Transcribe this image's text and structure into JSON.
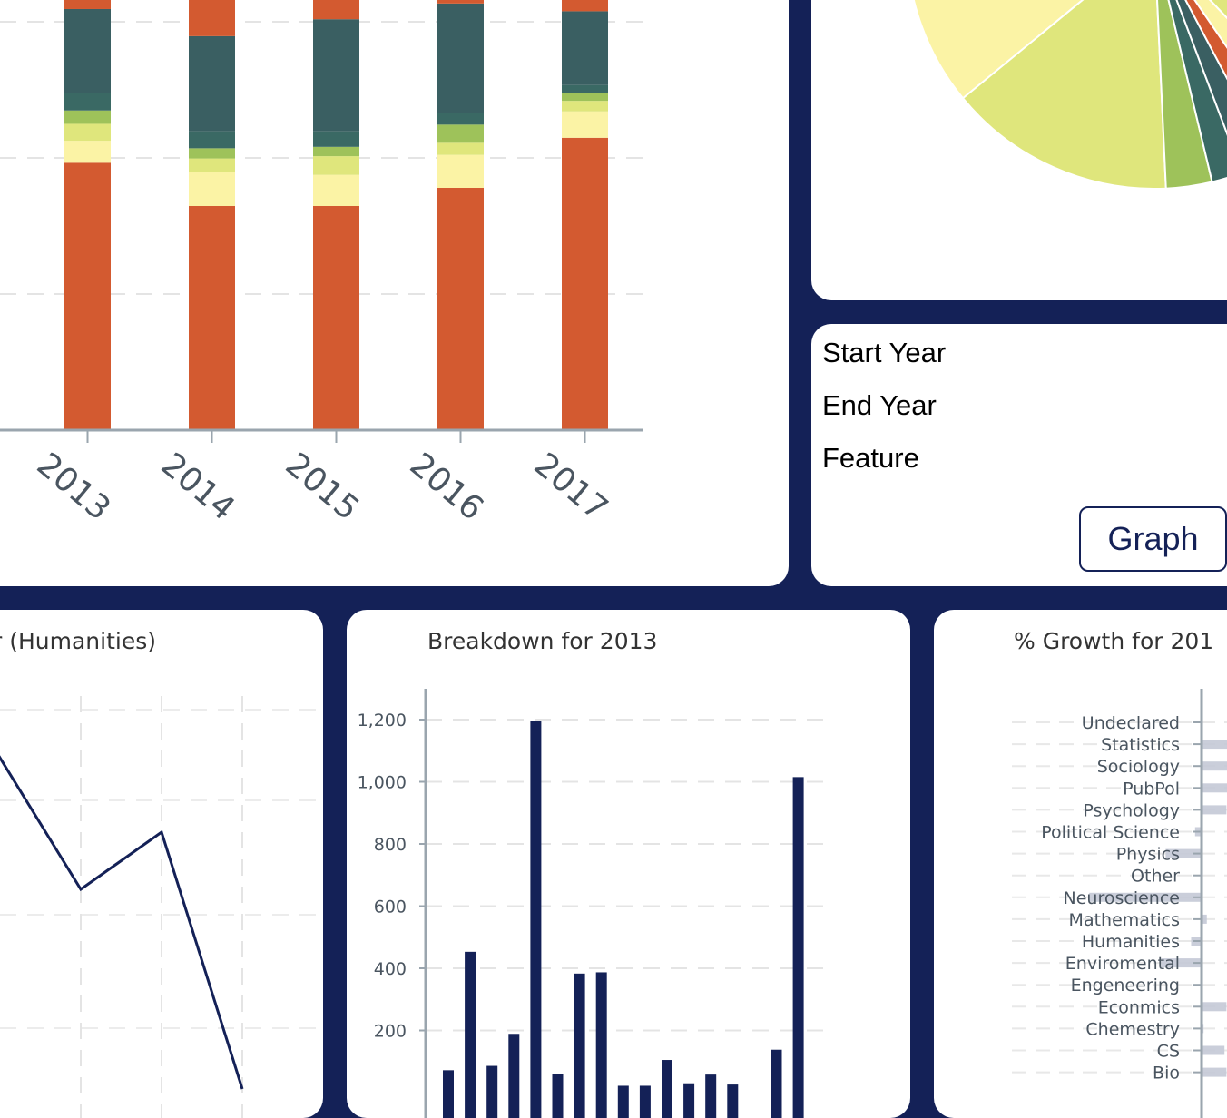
{
  "stacked_chart": {
    "chart_data": {
      "type": "bar",
      "stacked": true,
      "categories": [
        "2013",
        "2014",
        "2015",
        "2016",
        "2017"
      ],
      "segment_colors": [
        "#d35a30",
        "#fbf3a5",
        "#dfe67c",
        "#9ec25a",
        "#3a6964",
        "#3a5f62",
        "#d35a30",
        "#fbf3a5",
        "#dfe67c",
        "#9ec25a",
        "#3a6964",
        "#d35a30"
      ],
      "stacks": [
        [
          0.5965,
          0.0491,
          0.0377,
          0.0298,
          0.0386,
          0.1876,
          0.0789,
          0.1623,
          0.1623,
          0.0439,
          0.0175,
          0.0263
        ],
        [
          0.5,
          0.0758,
          0.0303,
          0.0227,
          0.0379,
          0.2121,
          0.0909,
          0.1515,
          0.1667,
          0.0227,
          0.0159,
          0.0
        ],
        [
          0.5,
          0.0694,
          0.0417,
          0.0208,
          0.0347,
          0.25,
          0.1042,
          0.1319,
          0.1319,
          0.0347,
          0.0,
          0.0
        ],
        [
          0.5405,
          0.0735,
          0.027,
          0.0405,
          0.027,
          0.2432,
          0.0946,
          0.1351,
          0.0973,
          0.0,
          0.0,
          0.0
        ],
        [
          0.6522,
          0.0588,
          0.0235,
          0.0176,
          0.0176,
          0.1647,
          0.0941,
          0.0941,
          0.1118,
          0.0235,
          0.0235,
          0.0282
        ]
      ]
    }
  },
  "pie_chart": {
    "chart_data": {
      "type": "pie",
      "slices": [
        {
          "value": 0.04,
          "color": "#d35a30"
        },
        {
          "value": 0.125,
          "color": "#fbf3a5"
        },
        {
          "value": 0.148,
          "color": "#dfe67c"
        },
        {
          "value": 0.03,
          "color": "#9ec25a"
        },
        {
          "value": 0.02,
          "color": "#3a6964"
        },
        {
          "value": 0.02,
          "color": "#3a5f62"
        },
        {
          "value": 0.018,
          "color": "#d35a30"
        },
        {
          "value": 0.025,
          "color": "#fbf3a5"
        },
        {
          "value": 0.31,
          "color": "#dfe67c"
        },
        {
          "value": 0.1,
          "color": "#3a5f62"
        },
        {
          "value": 0.164,
          "color": "#d35a30"
        }
      ]
    }
  },
  "form": {
    "start_year_label": "Start Year",
    "end_year_label": "End Year",
    "feature_label": "Feature",
    "graph_button_label": "Graph"
  },
  "line_chart": {
    "title": "r (Humanities)",
    "chart_data": {
      "type": "line",
      "title": "r (Humanities)",
      "points": [
        [
          0.0,
          0.83
        ],
        [
          1.0,
          0.65
        ],
        [
          2.0,
          0.84
        ],
        [
          3.0,
          0.0
        ]
      ],
      "ylim": [
        0,
        1
      ]
    }
  },
  "bar_chart": {
    "title": "Breakdown for 2013",
    "chart_data": {
      "type": "bar",
      "title": "Breakdown for 2013",
      "values": [
        72,
        453,
        86,
        189,
        1195,
        60,
        383,
        387,
        22,
        22,
        105,
        30,
        58,
        26,
        0,
        138,
        1015
      ],
      "ylim": [
        0,
        1350
      ],
      "ticks": [
        {
          "value": 200,
          "label": "200"
        },
        {
          "value": 400,
          "label": "400"
        },
        {
          "value": 600,
          "label": "600"
        },
        {
          "value": 800,
          "label": "800"
        },
        {
          "value": 1000,
          "label": "1,000"
        },
        {
          "value": 1200,
          "label": "1,200"
        }
      ]
    }
  },
  "growth_chart": {
    "title": "% Growth for 201",
    "chart_data": {
      "type": "bar",
      "orientation": "horizontal",
      "title": "% Growth for 201",
      "categories": [
        "Undeclared",
        "Statistics",
        "Sociology",
        "PubPol",
        "Psychology",
        "Political Science",
        "Physics",
        "Other",
        "Neuroscience",
        "Mathematics",
        "Humanities",
        "Enviromental",
        "Engeneering",
        "Econmics",
        "Chemestry",
        "CS",
        "Bio"
      ],
      "values": [
        0,
        45,
        40,
        40,
        38,
        -10,
        -55,
        0,
        -172,
        8,
        -16,
        -62,
        0,
        38,
        3,
        35,
        38
      ],
      "xlim": [
        -200,
        200
      ]
    }
  }
}
